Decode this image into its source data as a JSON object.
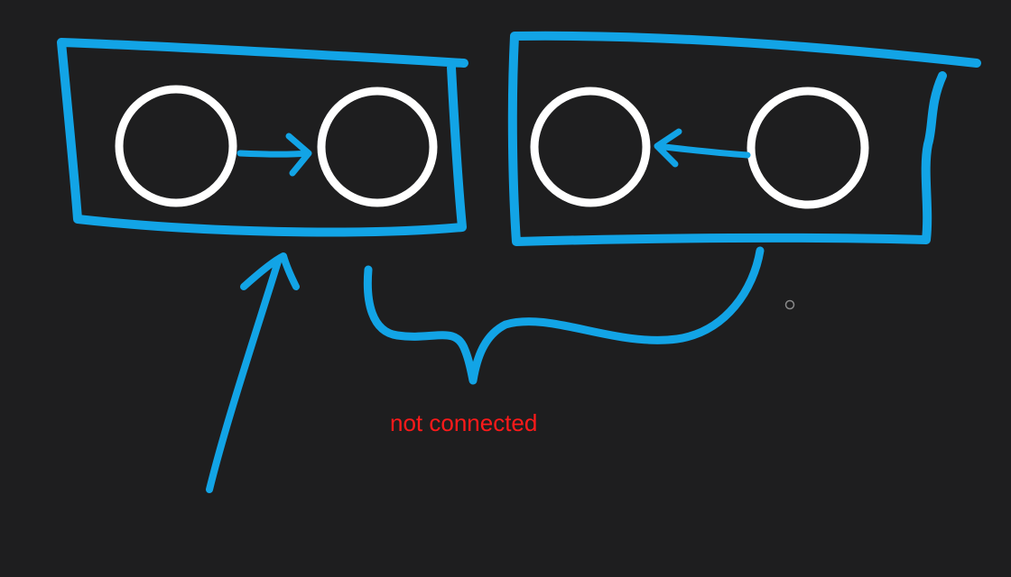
{
  "diagram": {
    "annotation": "not connected",
    "colors": {
      "background": "#1e1e1f",
      "ink": "#12a4e6",
      "node": "#ffffff",
      "annotation": "#ff1a1a",
      "cursor": "#8a8a8a"
    },
    "groups": [
      {
        "name": "left-group",
        "nodes": [
          "node-a",
          "node-b"
        ],
        "edge": {
          "from": "node-a",
          "to": "node-b"
        }
      },
      {
        "name": "right-group",
        "nodes": [
          "node-c",
          "node-d"
        ],
        "edge": {
          "from": "node-d",
          "to": "node-c"
        }
      }
    ]
  }
}
